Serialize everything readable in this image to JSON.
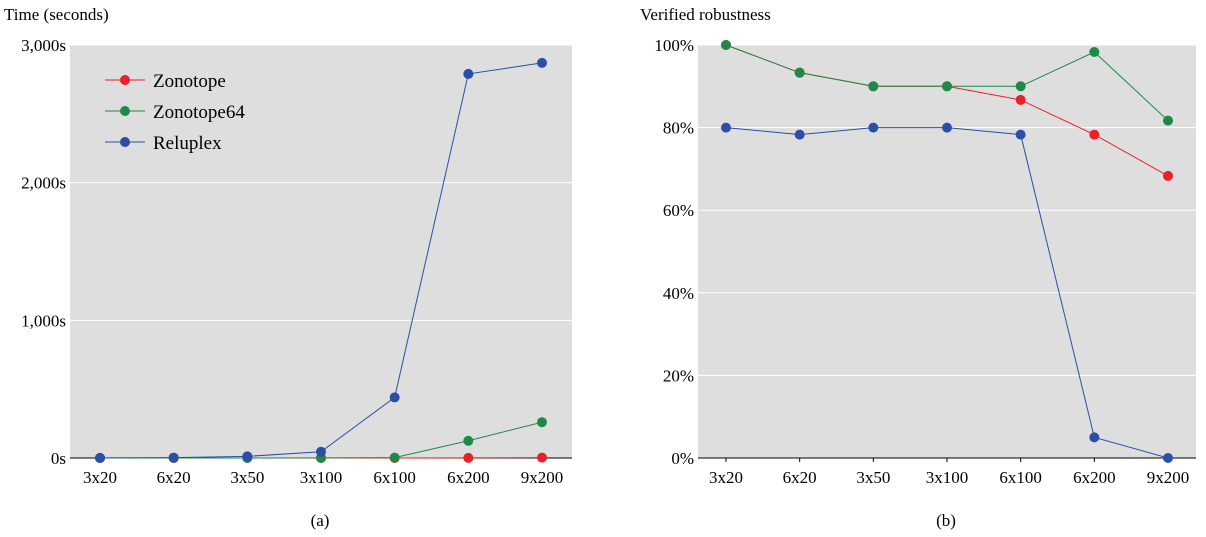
{
  "colors": {
    "plot_background": "#dedede",
    "grid": "#ffffff",
    "zonotope": "#e8202a",
    "zonotope64": "#1f8a48",
    "reluplex": "#2b4ea6"
  },
  "chart_data": [
    {
      "type": "line",
      "title": "",
      "ylabel": "Time (seconds)",
      "xlabel": "",
      "caption": "(a)",
      "categories": [
        "3x20",
        "6x20",
        "3x50",
        "3x100",
        "6x100",
        "6x200",
        "9x200"
      ],
      "ylim": [
        0,
        3000
      ],
      "yticks": [
        {
          "value": 0,
          "label": "0s"
        },
        {
          "value": 1000,
          "label": "1,000s"
        },
        {
          "value": 2000,
          "label": "2,000s"
        },
        {
          "value": 3000,
          "label": "3,000s"
        }
      ],
      "grid": true,
      "legend_position": "top-left",
      "legend": [
        "Zonotope",
        "Zonotope64",
        "Reluplex"
      ],
      "series": [
        {
          "name": "Zonotope",
          "color_key": "zonotope",
          "values": [
            0,
            0,
            0,
            0,
            0,
            1,
            3
          ]
        },
        {
          "name": "Zonotope64",
          "color_key": "zonotope64",
          "values": [
            0,
            0,
            0,
            1,
            3,
            125,
            260
          ]
        },
        {
          "name": "Reluplex",
          "color_key": "reluplex",
          "values": [
            1,
            3,
            12,
            45,
            440,
            2790,
            2870
          ]
        }
      ]
    },
    {
      "type": "line",
      "title": "",
      "ylabel": "Verified robustness",
      "xlabel": "",
      "caption": "(b)",
      "categories": [
        "3x20",
        "6x20",
        "3x50",
        "3x100",
        "6x100",
        "6x200",
        "9x200"
      ],
      "ylim": [
        0,
        100
      ],
      "yticks": [
        {
          "value": 0,
          "label": "0%"
        },
        {
          "value": 20,
          "label": "20%"
        },
        {
          "value": 40,
          "label": "40%"
        },
        {
          "value": 60,
          "label": "60%"
        },
        {
          "value": 80,
          "label": "80%"
        },
        {
          "value": 100,
          "label": "100%"
        }
      ],
      "grid": true,
      "legend_position": "none",
      "series": [
        {
          "name": "Zonotope",
          "color_key": "zonotope",
          "values": [
            100,
            93.3,
            90,
            90,
            86.7,
            78.3,
            68.3
          ]
        },
        {
          "name": "Zonotope64",
          "color_key": "zonotope64",
          "values": [
            100,
            93.3,
            90,
            90,
            90,
            98.3,
            81.7
          ]
        },
        {
          "name": "Reluplex",
          "color_key": "reluplex",
          "values": [
            80,
            78.3,
            80,
            80,
            78.3,
            5,
            0
          ]
        }
      ]
    }
  ]
}
